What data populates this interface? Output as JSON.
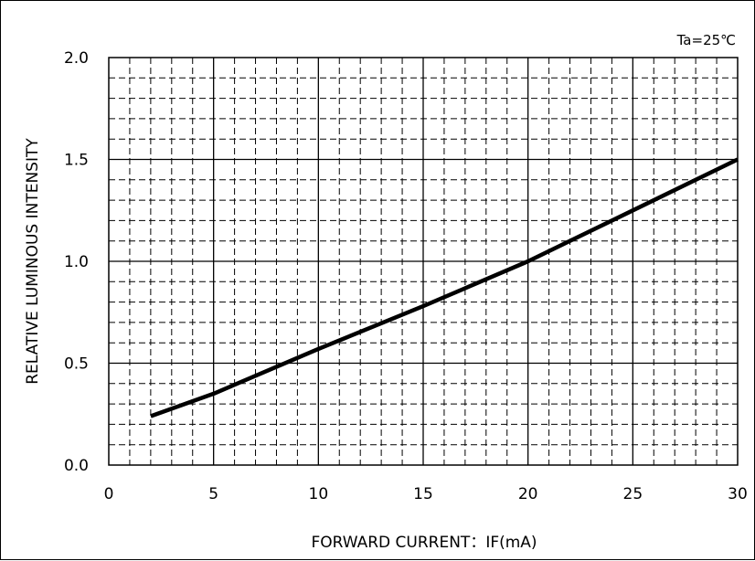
{
  "chart_data": {
    "type": "line",
    "annotation": "Ta=25℃",
    "xlabel": "FORWARD CURRENT：IF(mA)",
    "ylabel": "RELATIVE LUMINOUS INTENSITY",
    "xlim": [
      0,
      30
    ],
    "ylim": [
      0,
      2.0
    ],
    "x_ticks": [
      "0",
      "5",
      "10",
      "15",
      "20",
      "25",
      "30"
    ],
    "y_ticks": [
      "0.0",
      "0.5",
      "1.0",
      "1.5",
      "2.0"
    ],
    "grid": true,
    "series": [
      {
        "x": [
          2,
          5,
          10,
          15,
          20,
          25,
          30
        ],
        "y": [
          0.24,
          0.35,
          0.57,
          0.78,
          1.0,
          1.25,
          1.5
        ]
      }
    ]
  }
}
